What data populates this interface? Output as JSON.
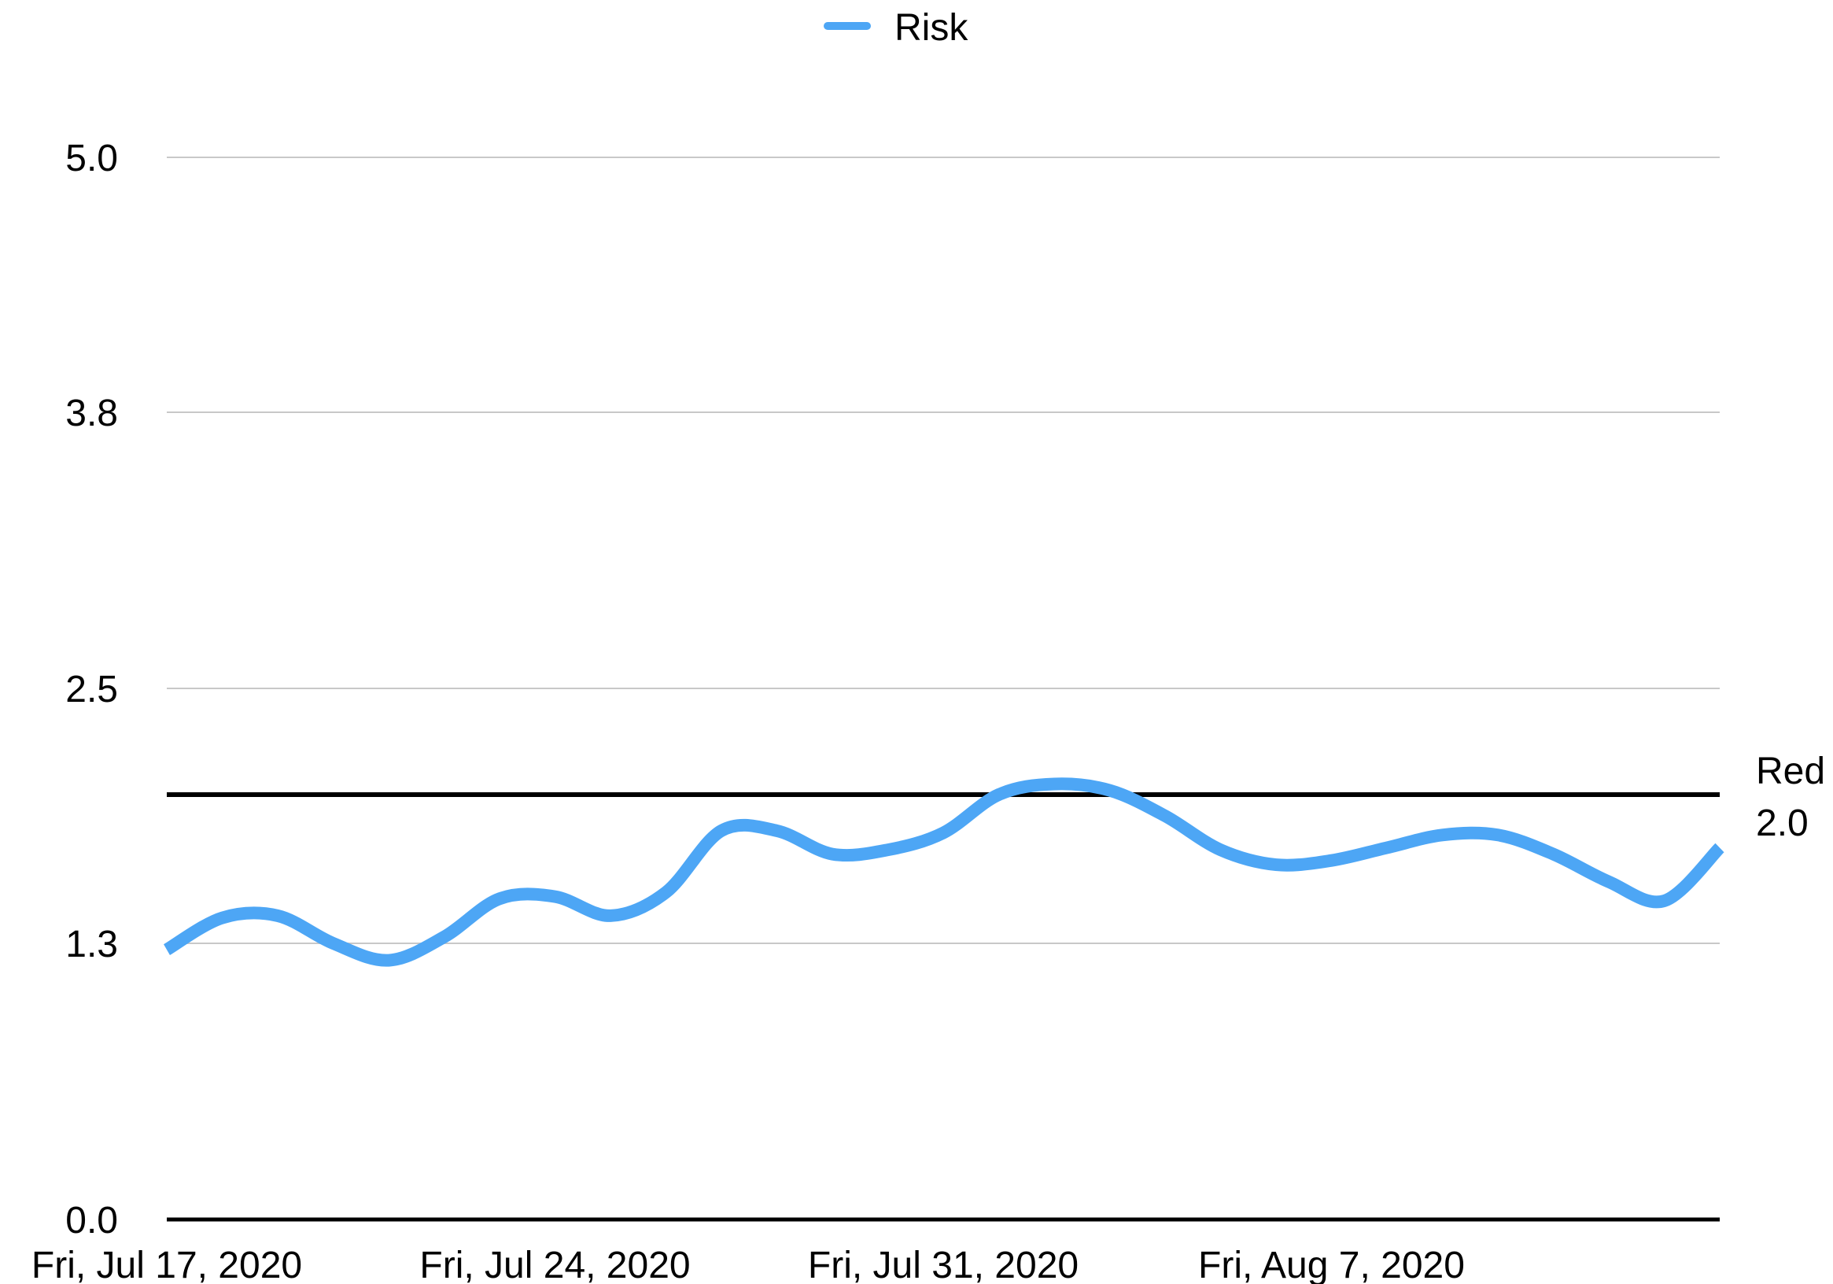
{
  "chart_data": {
    "type": "line",
    "title": "",
    "xlabel": "",
    "ylabel": "",
    "legend": {
      "position": "top-center",
      "entries": [
        "Risk"
      ]
    },
    "grid": true,
    "x_range": [
      "2020-07-17",
      "2020-08-14"
    ],
    "ylim": [
      0.0,
      5.0
    ],
    "y_ticks": [
      0.0,
      1.3,
      2.5,
      3.8,
      5.0
    ],
    "y_tick_labels": [
      "0.0",
      "1.3",
      "2.5",
      "3.8",
      "5.0"
    ],
    "x_ticks": [
      "2020-07-17",
      "2020-07-24",
      "2020-07-31",
      "2020-08-07"
    ],
    "x_tick_labels": [
      "Fri, Jul 17, 2020",
      "Fri, Jul 24, 2020",
      "Fri, Jul 31, 2020",
      "Fri, Aug 7, 2020"
    ],
    "series": [
      {
        "name": "Risk",
        "color": "#4da6f5",
        "x": [
          "2020-07-17",
          "2020-07-18",
          "2020-07-19",
          "2020-07-20",
          "2020-07-21",
          "2020-07-22",
          "2020-07-23",
          "2020-07-24",
          "2020-07-25",
          "2020-07-26",
          "2020-07-27",
          "2020-07-28",
          "2020-07-29",
          "2020-07-30",
          "2020-07-31",
          "2020-08-01",
          "2020-08-02",
          "2020-08-03",
          "2020-08-04",
          "2020-08-05",
          "2020-08-06",
          "2020-08-07",
          "2020-08-08",
          "2020-08-09",
          "2020-08-10",
          "2020-08-11",
          "2020-08-12",
          "2020-08-13",
          "2020-08-14"
        ],
        "values": [
          1.27,
          1.42,
          1.43,
          1.3,
          1.22,
          1.33,
          1.51,
          1.52,
          1.43,
          1.54,
          1.83,
          1.83,
          1.72,
          1.74,
          1.82,
          2.0,
          2.05,
          2.02,
          1.9,
          1.74,
          1.67,
          1.69,
          1.75,
          1.81,
          1.81,
          1.72,
          1.59,
          1.5,
          1.75
        ]
      }
    ],
    "reference_line": {
      "value": 2.0,
      "label_name": "Red",
      "label_value": "2.0",
      "color": "#000000"
    }
  }
}
